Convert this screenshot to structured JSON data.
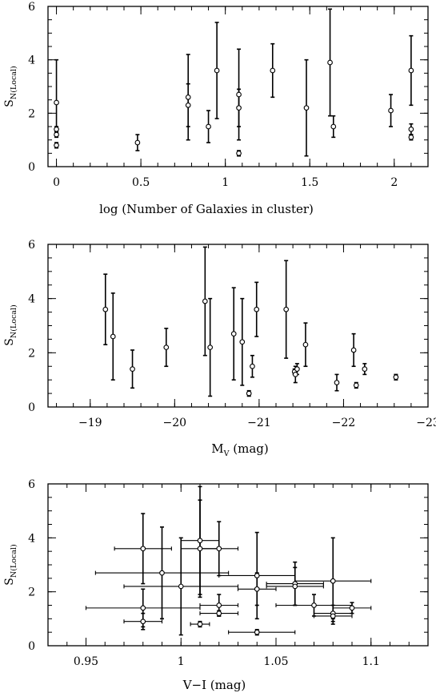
{
  "chart_data": [
    {
      "type": "scatter",
      "xlabel": "log (Number of Galaxies in cluster)",
      "ylabel_main": "S",
      "ylabel_sub": "N(Local)",
      "xlim": [
        -0.05,
        2.2
      ],
      "ylim": [
        0,
        6
      ],
      "x_inverted": false,
      "xticks": [
        0,
        0.5,
        1,
        1.5,
        2
      ],
      "xtick_labels": [
        "0",
        "0.5",
        "1",
        "1.5",
        "2"
      ],
      "x_minor_step": 0.1,
      "yticks": [
        0,
        2,
        4,
        6
      ],
      "ytick_labels": [
        "0",
        "2",
        "4",
        "6"
      ],
      "y_minor_step": 0.5,
      "points": [
        {
          "x": 0.0,
          "y": 2.4,
          "ylo": 1.3,
          "yhi": 4.0
        },
        {
          "x": 0.0,
          "y": 1.4,
          "ylo": 1.3,
          "yhi": 1.5
        },
        {
          "x": 0.0,
          "y": 1.2,
          "ylo": 1.1,
          "yhi": 1.3
        },
        {
          "x": 0.0,
          "y": 0.8,
          "ylo": 0.7,
          "yhi": 0.9
        },
        {
          "x": 0.48,
          "y": 0.9,
          "ylo": 0.6,
          "yhi": 1.2
        },
        {
          "x": 0.78,
          "y": 2.6,
          "ylo": 1.0,
          "yhi": 4.2
        },
        {
          "x": 0.78,
          "y": 2.3,
          "ylo": 1.5,
          "yhi": 3.1
        },
        {
          "x": 0.9,
          "y": 1.5,
          "ylo": 0.9,
          "yhi": 2.1
        },
        {
          "x": 0.95,
          "y": 3.6,
          "ylo": 1.8,
          "yhi": 5.4
        },
        {
          "x": 1.08,
          "y": 2.7,
          "ylo": 1.0,
          "yhi": 4.4
        },
        {
          "x": 1.08,
          "y": 2.2,
          "ylo": 1.5,
          "yhi": 2.9
        },
        {
          "x": 1.08,
          "y": 0.5,
          "ylo": 0.4,
          "yhi": 0.6
        },
        {
          "x": 1.28,
          "y": 3.6,
          "ylo": 2.6,
          "yhi": 4.6
        },
        {
          "x": 1.48,
          "y": 2.2,
          "ylo": 0.4,
          "yhi": 4.0
        },
        {
          "x": 1.62,
          "y": 3.9,
          "ylo": 1.9,
          "yhi": 5.9
        },
        {
          "x": 1.64,
          "y": 1.5,
          "ylo": 1.1,
          "yhi": 1.9
        },
        {
          "x": 1.98,
          "y": 2.1,
          "ylo": 1.5,
          "yhi": 2.7
        },
        {
          "x": 2.1,
          "y": 3.6,
          "ylo": 2.3,
          "yhi": 4.9
        },
        {
          "x": 2.1,
          "y": 1.4,
          "ylo": 1.2,
          "yhi": 1.6
        },
        {
          "x": 2.1,
          "y": 1.1,
          "ylo": 1.0,
          "yhi": 1.2
        }
      ]
    },
    {
      "type": "scatter",
      "xlabel": "M",
      "xlabel_sub": "V",
      "xlabel_suffix": " (mag)",
      "ylabel_main": "S",
      "ylabel_sub": "N(Local)",
      "xlim": [
        -18.5,
        -23
      ],
      "ylim": [
        0,
        6
      ],
      "x_inverted": true,
      "xticks": [
        -19,
        -20,
        -21,
        -22,
        -23
      ],
      "xtick_labels": [
        "−19",
        "−20",
        "−21",
        "−22",
        "−23"
      ],
      "x_minor_step": 0.2,
      "yticks": [
        0,
        2,
        4,
        6
      ],
      "ytick_labels": [
        "0",
        "2",
        "4",
        "6"
      ],
      "y_minor_step": 0.5,
      "points": [
        {
          "x": -19.18,
          "y": 3.6,
          "ylo": 2.3,
          "yhi": 4.9
        },
        {
          "x": -19.27,
          "y": 2.6,
          "ylo": 1.0,
          "yhi": 4.2
        },
        {
          "x": -19.5,
          "y": 1.4,
          "ylo": 0.7,
          "yhi": 2.1
        },
        {
          "x": -19.9,
          "y": 2.2,
          "ylo": 1.5,
          "yhi": 2.9
        },
        {
          "x": -20.36,
          "y": 3.9,
          "ylo": 1.9,
          "yhi": 5.9
        },
        {
          "x": -20.42,
          "y": 2.2,
          "ylo": 0.4,
          "yhi": 4.0
        },
        {
          "x": -20.7,
          "y": 2.7,
          "ylo": 1.0,
          "yhi": 4.4
        },
        {
          "x": -20.8,
          "y": 2.4,
          "ylo": 0.8,
          "yhi": 4.0
        },
        {
          "x": -20.92,
          "y": 1.5,
          "ylo": 1.1,
          "yhi": 1.9
        },
        {
          "x": -20.88,
          "y": 0.5,
          "ylo": 0.4,
          "yhi": 0.6
        },
        {
          "x": -20.97,
          "y": 3.6,
          "ylo": 2.6,
          "yhi": 4.6
        },
        {
          "x": -21.32,
          "y": 3.6,
          "ylo": 1.8,
          "yhi": 5.4
        },
        {
          "x": -21.42,
          "y": 1.3,
          "ylo": 1.2,
          "yhi": 1.4
        },
        {
          "x": -21.43,
          "y": 1.2,
          "ylo": 0.9,
          "yhi": 1.5
        },
        {
          "x": -21.45,
          "y": 1.4,
          "ylo": 1.2,
          "yhi": 1.6
        },
        {
          "x": -21.55,
          "y": 2.3,
          "ylo": 1.5,
          "yhi": 3.1
        },
        {
          "x": -21.92,
          "y": 0.9,
          "ylo": 0.6,
          "yhi": 1.2
        },
        {
          "x": -22.12,
          "y": 2.1,
          "ylo": 1.5,
          "yhi": 2.7
        },
        {
          "x": -22.15,
          "y": 0.8,
          "ylo": 0.7,
          "yhi": 0.9
        },
        {
          "x": -22.25,
          "y": 1.4,
          "ylo": 1.2,
          "yhi": 1.6
        },
        {
          "x": -22.62,
          "y": 1.1,
          "ylo": 1.0,
          "yhi": 1.2
        }
      ]
    },
    {
      "type": "scatter",
      "xlabel": "V−I (mag)",
      "ylabel_main": "S",
      "ylabel_sub": "N(Local)",
      "xlim": [
        0.93,
        1.13
      ],
      "ylim": [
        0,
        6
      ],
      "x_inverted": false,
      "xticks": [
        0.95,
        1.0,
        1.05,
        1.1
      ],
      "xtick_labels": [
        "0.95",
        "1",
        "1.05",
        "1.1"
      ],
      "x_minor_step": 0.01,
      "yticks": [
        0,
        2,
        4,
        6
      ],
      "ytick_labels": [
        "0",
        "2",
        "4",
        "6"
      ],
      "y_minor_step": 0.5,
      "points": [
        {
          "x": 0.98,
          "y": 3.6,
          "ylo": 2.3,
          "yhi": 4.9,
          "xlo": 0.965,
          "xhi": 0.995
        },
        {
          "x": 0.98,
          "y": 1.4,
          "ylo": 0.7,
          "yhi": 2.1,
          "xlo": 0.95,
          "xhi": 1.01
        },
        {
          "x": 0.98,
          "y": 0.9,
          "ylo": 0.6,
          "yhi": 1.2,
          "xlo": 0.97,
          "xhi": 0.99
        },
        {
          "x": 0.99,
          "y": 2.7,
          "ylo": 1.0,
          "yhi": 4.4,
          "xlo": 0.955,
          "xhi": 1.025
        },
        {
          "x": 1.0,
          "y": 2.2,
          "ylo": 0.4,
          "yhi": 4.0,
          "xlo": 0.97,
          "xhi": 1.03
        },
        {
          "x": 1.01,
          "y": 3.9,
          "ylo": 1.9,
          "yhi": 5.9,
          "xlo": 1.0,
          "xhi": 1.02
        },
        {
          "x": 1.01,
          "y": 3.6,
          "ylo": 1.8,
          "yhi": 5.4,
          "xlo": 1.0,
          "xhi": 1.02
        },
        {
          "x": 1.01,
          "y": 0.8,
          "ylo": 0.7,
          "yhi": 0.9,
          "xlo": 1.005,
          "xhi": 1.015
        },
        {
          "x": 1.02,
          "y": 3.6,
          "ylo": 2.6,
          "yhi": 4.6,
          "xlo": 1.01,
          "xhi": 1.03
        },
        {
          "x": 1.02,
          "y": 1.5,
          "ylo": 1.1,
          "yhi": 1.9,
          "xlo": 1.01,
          "xhi": 1.03
        },
        {
          "x": 1.02,
          "y": 1.2,
          "ylo": 1.1,
          "yhi": 1.3,
          "xlo": 1.01,
          "xhi": 1.03
        },
        {
          "x": 1.04,
          "y": 2.6,
          "ylo": 1.0,
          "yhi": 4.2,
          "xlo": 1.02,
          "xhi": 1.06
        },
        {
          "x": 1.04,
          "y": 2.1,
          "ylo": 1.5,
          "yhi": 2.7,
          "xlo": 1.03,
          "xhi": 1.05
        },
        {
          "x": 1.04,
          "y": 0.5,
          "ylo": 0.4,
          "yhi": 0.6,
          "xlo": 1.025,
          "xhi": 1.06
        },
        {
          "x": 1.06,
          "y": 2.3,
          "ylo": 1.5,
          "yhi": 3.1,
          "xlo": 1.045,
          "xhi": 1.075
        },
        {
          "x": 1.06,
          "y": 2.2,
          "ylo": 1.5,
          "yhi": 2.9,
          "xlo": 1.045,
          "xhi": 1.075
        },
        {
          "x": 1.07,
          "y": 1.5,
          "ylo": 1.1,
          "yhi": 1.9,
          "xlo": 1.05,
          "xhi": 1.09
        },
        {
          "x": 1.08,
          "y": 2.4,
          "ylo": 0.8,
          "yhi": 4.0,
          "xlo": 1.06,
          "xhi": 1.1
        },
        {
          "x": 1.08,
          "y": 1.2,
          "ylo": 0.9,
          "yhi": 1.5,
          "xlo": 1.07,
          "xhi": 1.09
        },
        {
          "x": 1.08,
          "y": 1.1,
          "ylo": 1.0,
          "yhi": 1.2,
          "xlo": 1.07,
          "xhi": 1.09
        },
        {
          "x": 1.09,
          "y": 1.4,
          "ylo": 1.2,
          "yhi": 1.6,
          "xlo": 1.08,
          "xhi": 1.1
        }
      ]
    }
  ]
}
